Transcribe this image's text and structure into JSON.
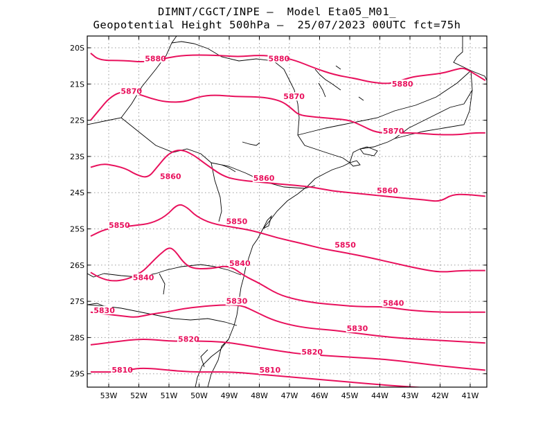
{
  "title_line1": "DIMNT/CGCT/INPE –  Model Eta05_M01_",
  "title_line2": "Geopotential Height 500hPa –  25/07/2023 00UTC fct=75h",
  "lon_ticks": [
    "53W",
    "52W",
    "51W",
    "50W",
    "49W",
    "48W",
    "47W",
    "46W",
    "45W",
    "44W",
    "43W",
    "42W",
    "41W"
  ],
  "lat_ticks": [
    "20S",
    "21S",
    "22S",
    "23S",
    "24S",
    "25S",
    "26S",
    "27S",
    "28S",
    "29S"
  ],
  "contours": [
    {
      "level": 5880,
      "color": "#e8105c",
      "labels": [
        "5880",
        "5880",
        "5880"
      ],
      "points": [
        [
          -53.6,
          -20.15
        ],
        [
          -53.3,
          -20.35
        ],
        [
          -52.5,
          -20.35
        ],
        [
          -51.8,
          -20.4
        ],
        [
          -51.2,
          -20.3
        ],
        [
          -50.5,
          -20.2
        ],
        [
          -49.5,
          -20.2
        ],
        [
          -48.7,
          -20.25
        ],
        [
          -48.0,
          -20.2
        ],
        [
          -47.3,
          -20.25
        ],
        [
          -46.8,
          -20.35
        ],
        [
          -46.2,
          -20.55
        ],
        [
          -45.5,
          -20.75
        ],
        [
          -44.8,
          -20.85
        ],
        [
          -44.3,
          -20.95
        ],
        [
          -43.7,
          -21.0
        ],
        [
          -43.3,
          -20.9
        ],
        [
          -42.9,
          -20.8
        ],
        [
          -42.4,
          -20.75
        ],
        [
          -41.9,
          -20.7
        ],
        [
          -41.5,
          -20.6
        ],
        [
          -41.2,
          -20.55
        ],
        [
          -40.9,
          -20.7
        ],
        [
          -40.5,
          -20.9
        ]
      ],
      "label_pos": [
        [
          -51.8,
          -20.35
        ],
        [
          -47.7,
          -20.35
        ],
        [
          -43.6,
          -21.05
        ]
      ]
    },
    {
      "level": 5870,
      "color": "#e8105c",
      "labels": [
        "5870",
        "5870",
        "5870"
      ],
      "points": [
        [
          -53.6,
          -22.0
        ],
        [
          -53.3,
          -21.7
        ],
        [
          -53.0,
          -21.4
        ],
        [
          -52.6,
          -21.2
        ],
        [
          -52.1,
          -21.25
        ],
        [
          -51.6,
          -21.4
        ],
        [
          -51.1,
          -21.5
        ],
        [
          -50.5,
          -21.5
        ],
        [
          -50.0,
          -21.35
        ],
        [
          -49.5,
          -21.3
        ],
        [
          -48.8,
          -21.35
        ],
        [
          -48.1,
          -21.35
        ],
        [
          -47.6,
          -21.4
        ],
        [
          -47.2,
          -21.5
        ],
        [
          -46.9,
          -21.7
        ],
        [
          -46.7,
          -21.85
        ],
        [
          -46.3,
          -21.9
        ],
        [
          -45.6,
          -21.95
        ],
        [
          -45.0,
          -22.0
        ],
        [
          -44.6,
          -22.15
        ],
        [
          -44.1,
          -22.35
        ],
        [
          -43.5,
          -22.35
        ],
        [
          -42.8,
          -22.35
        ],
        [
          -42.1,
          -22.4
        ],
        [
          -41.4,
          -22.4
        ],
        [
          -40.9,
          -22.35
        ],
        [
          -40.5,
          -22.35
        ]
      ],
      "label_pos": [
        [
          -52.6,
          -21.25
        ],
        [
          -47.2,
          -21.4
        ],
        [
          -43.9,
          -22.35
        ]
      ]
    },
    {
      "level": 5860,
      "color": "#e8105c",
      "labels": [
        "5860",
        "5860",
        "5860"
      ],
      "points": [
        [
          -53.6,
          -23.3
        ],
        [
          -53.2,
          -23.2
        ],
        [
          -52.8,
          -23.25
        ],
        [
          -52.4,
          -23.35
        ],
        [
          -52.1,
          -23.5
        ],
        [
          -51.7,
          -23.6
        ],
        [
          -51.4,
          -23.3
        ],
        [
          -51.0,
          -22.9
        ],
        [
          -50.6,
          -22.8
        ],
        [
          -50.2,
          -22.95
        ],
        [
          -49.8,
          -23.2
        ],
        [
          -49.2,
          -23.55
        ],
        [
          -48.7,
          -23.65
        ],
        [
          -48.1,
          -23.7
        ],
        [
          -47.5,
          -23.75
        ],
        [
          -46.8,
          -23.8
        ],
        [
          -46.2,
          -23.85
        ],
        [
          -45.6,
          -23.95
        ],
        [
          -45.0,
          -24.0
        ],
        [
          -44.4,
          -24.05
        ],
        [
          -43.8,
          -24.1
        ],
        [
          -43.2,
          -24.15
        ],
        [
          -42.5,
          -24.2
        ],
        [
          -42.0,
          -24.25
        ],
        [
          -41.6,
          -24.05
        ],
        [
          -41.1,
          -24.05
        ],
        [
          -40.5,
          -24.1
        ]
      ],
      "label_pos": [
        [
          -51.3,
          -23.6
        ],
        [
          -48.2,
          -23.65
        ],
        [
          -44.1,
          -24.0
        ]
      ]
    },
    {
      "level": 5850,
      "color": "#e8105c",
      "labels": [
        "5850",
        "5850",
        "5850"
      ],
      "points": [
        [
          -53.6,
          -25.2
        ],
        [
          -53.1,
          -25.0
        ],
        [
          -52.6,
          -24.95
        ],
        [
          -52.1,
          -24.9
        ],
        [
          -51.6,
          -24.85
        ],
        [
          -51.1,
          -24.65
        ],
        [
          -50.7,
          -24.3
        ],
        [
          -50.4,
          -24.4
        ],
        [
          -50.1,
          -24.65
        ],
        [
          -49.6,
          -24.85
        ],
        [
          -48.9,
          -24.95
        ],
        [
          -48.2,
          -25.05
        ],
        [
          -47.4,
          -25.25
        ],
        [
          -46.6,
          -25.4
        ],
        [
          -45.9,
          -25.55
        ],
        [
          -45.2,
          -25.65
        ],
        [
          -44.3,
          -25.8
        ],
        [
          -43.5,
          -25.95
        ],
        [
          -42.7,
          -26.1
        ],
        [
          -42.0,
          -26.2
        ],
        [
          -41.3,
          -26.15
        ],
        [
          -40.5,
          -26.15
        ]
      ],
      "label_pos": [
        [
          -53.0,
          -24.95
        ],
        [
          -49.1,
          -24.85
        ],
        [
          -45.5,
          -25.5
        ]
      ]
    },
    {
      "level": 5840,
      "color": "#e8105c",
      "labels": [
        "5840",
        "5840",
        "5840"
      ],
      "points": [
        [
          -53.6,
          -26.2
        ],
        [
          -53.3,
          -26.35
        ],
        [
          -52.9,
          -26.45
        ],
        [
          -52.4,
          -26.4
        ],
        [
          -51.9,
          -26.2
        ],
        [
          -51.6,
          -25.95
        ],
        [
          -51.3,
          -25.7
        ],
        [
          -51.0,
          -25.5
        ],
        [
          -50.8,
          -25.6
        ],
        [
          -50.5,
          -25.95
        ],
        [
          -50.2,
          -26.1
        ],
        [
          -49.6,
          -26.1
        ],
        [
          -49.0,
          -26.0
        ],
        [
          -48.5,
          -26.3
        ],
        [
          -48.0,
          -26.5
        ],
        [
          -47.4,
          -26.8
        ],
        [
          -46.8,
          -26.95
        ],
        [
          -46.1,
          -27.05
        ],
        [
          -45.4,
          -27.1
        ],
        [
          -44.7,
          -27.15
        ],
        [
          -43.8,
          -27.15
        ],
        [
          -43.0,
          -27.25
        ],
        [
          -42.0,
          -27.3
        ],
        [
          -41.0,
          -27.3
        ],
        [
          -40.5,
          -27.3
        ]
      ],
      "label_pos": [
        [
          -52.2,
          -26.4
        ],
        [
          -49.0,
          -26.0
        ],
        [
          -43.9,
          -27.1
        ]
      ]
    },
    {
      "level": 5830,
      "color": "#e8105c",
      "labels": [
        "5830",
        "5830",
        "5830"
      ],
      "points": [
        [
          -53.6,
          -27.3
        ],
        [
          -53.1,
          -27.35
        ],
        [
          -52.6,
          -27.4
        ],
        [
          -52.1,
          -27.45
        ],
        [
          -51.6,
          -27.35
        ],
        [
          -51.1,
          -27.3
        ],
        [
          -50.5,
          -27.2
        ],
        [
          -50.0,
          -27.15
        ],
        [
          -49.3,
          -27.1
        ],
        [
          -48.6,
          -27.1
        ],
        [
          -48.1,
          -27.3
        ],
        [
          -47.6,
          -27.5
        ],
        [
          -47.0,
          -27.65
        ],
        [
          -46.3,
          -27.75
        ],
        [
          -45.5,
          -27.8
        ],
        [
          -44.6,
          -27.9
        ],
        [
          -43.6,
          -28.0
        ],
        [
          -42.6,
          -28.05
        ],
        [
          -41.6,
          -28.1
        ],
        [
          -40.5,
          -28.15
        ]
      ],
      "label_pos": [
        [
          -53.5,
          -27.3
        ],
        [
          -49.1,
          -27.05
        ],
        [
          -45.1,
          -27.8
        ]
      ]
    },
    {
      "level": 5820,
      "color": "#e8105c",
      "labels": [
        "5820",
        "5820"
      ],
      "points": [
        [
          -53.6,
          -28.2
        ],
        [
          -53.1,
          -28.15
        ],
        [
          -52.6,
          -28.1
        ],
        [
          -52.1,
          -28.05
        ],
        [
          -51.6,
          -28.05
        ],
        [
          -51.0,
          -28.1
        ],
        [
          -50.3,
          -28.1
        ],
        [
          -49.6,
          -28.1
        ],
        [
          -48.9,
          -28.15
        ],
        [
          -48.2,
          -28.25
        ],
        [
          -47.5,
          -28.35
        ],
        [
          -46.7,
          -28.45
        ],
        [
          -45.8,
          -28.5
        ],
        [
          -44.8,
          -28.55
        ],
        [
          -43.8,
          -28.6
        ],
        [
          -42.8,
          -28.7
        ],
        [
          -41.8,
          -28.8
        ],
        [
          -40.5,
          -28.9
        ]
      ],
      "label_pos": [
        [
          -50.7,
          -28.1
        ],
        [
          -46.6,
          -28.45
        ]
      ]
    },
    {
      "level": 5810,
      "color": "#e8105c",
      "labels": [
        "5810",
        "5810"
      ],
      "points": [
        [
          -53.6,
          -28.95
        ],
        [
          -53.1,
          -28.95
        ],
        [
          -52.6,
          -28.95
        ],
        [
          -52.1,
          -28.85
        ],
        [
          -51.6,
          -28.85
        ],
        [
          -51.0,
          -28.9
        ],
        [
          -50.3,
          -28.95
        ],
        [
          -49.6,
          -28.95
        ],
        [
          -48.9,
          -28.95
        ],
        [
          -48.2,
          -29.0
        ],
        [
          -47.5,
          -29.05
        ],
        [
          -46.8,
          -29.1
        ],
        [
          -46.1,
          -29.15
        ],
        [
          -45.4,
          -29.2
        ],
        [
          -44.7,
          -29.25
        ],
        [
          -44.0,
          -29.3
        ],
        [
          -43.2,
          -29.35
        ],
        [
          -42.3,
          -29.4
        ]
      ],
      "label_pos": [
        [
          -52.9,
          -28.95
        ],
        [
          -48.0,
          -28.95
        ]
      ]
    }
  ]
}
